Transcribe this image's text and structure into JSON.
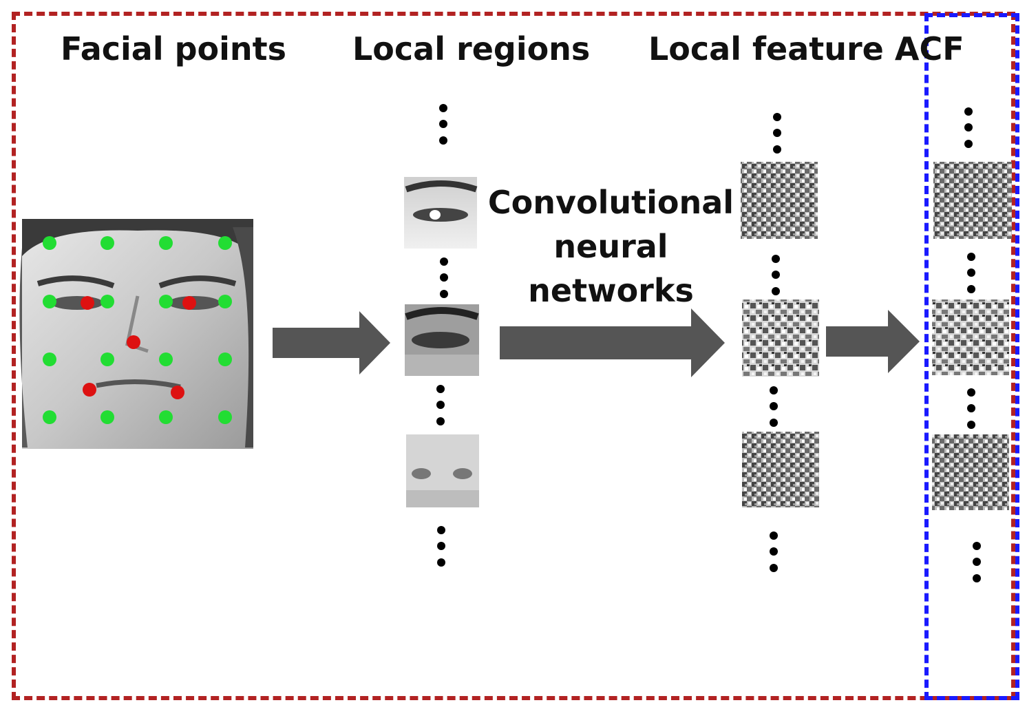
{
  "headings": {
    "facial_points": "Facial points",
    "local_regions": "Local regions",
    "local_feature": "Local feature ACF"
  },
  "cnn_label": {
    "line1": "Convolutional",
    "line2": "neural",
    "line3": "networks"
  },
  "colors": {
    "outer_frame": "#b22222",
    "inner_frame": "#1a1aff",
    "arrow": "#555555",
    "point_green": "#22dd33",
    "point_red": "#dd1111"
  },
  "icons": {
    "ellipsis": "vertical-ellipsis",
    "arrow": "right-arrow"
  }
}
